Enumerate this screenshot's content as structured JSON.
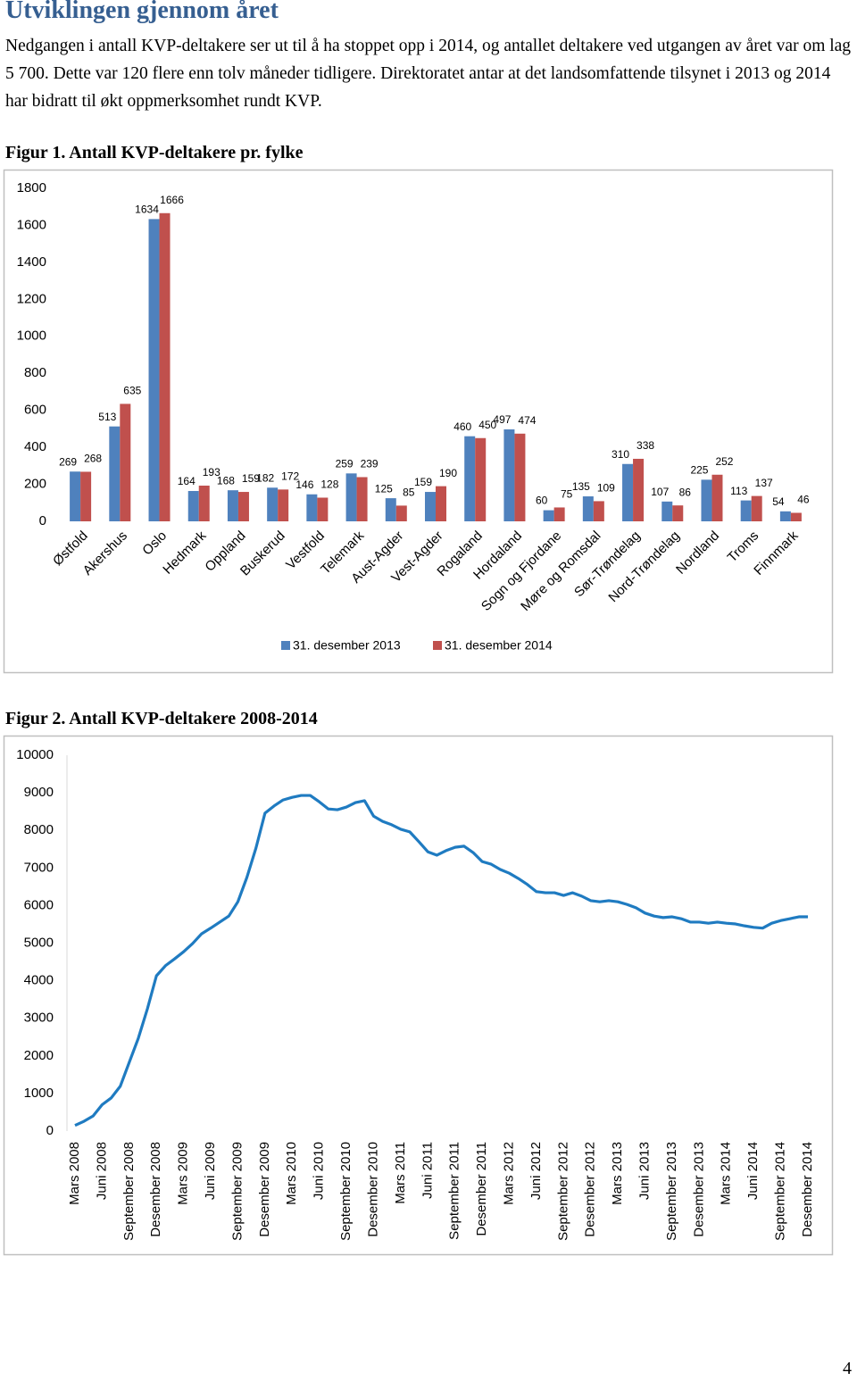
{
  "header": {
    "title": "Utviklingen gjennom året"
  },
  "paragraph": "Nedgangen i antall KVP-deltakere ser ut til å ha stoppet opp i 2014, og antallet deltakere ved utgangen av året var om lag 5 700. Dette var 120 flere enn tolv måneder tidligere. Direktoratet antar at det landsomfattende tilsynet i 2013 og 2014 har bidratt til økt oppmerksomhet rundt KVP.",
  "chart_data": [
    {
      "type": "bar",
      "title": "Figur 1. Antall KVP-deltakere pr. fylke",
      "categories": [
        "Østfold",
        "Akershus",
        "Oslo",
        "Hedmark",
        "Oppland",
        "Buskerud",
        "Vestfold",
        "Telemark",
        "Aust-Agder",
        "Vest-Agder",
        "Rogaland",
        "Hordaland",
        "Sogn og Fjordane",
        "Møre og Romsdal",
        "Sør-Trøndelag",
        "Nord-Trøndelag",
        "Nordland",
        "Troms",
        "Finnmark"
      ],
      "series": [
        {
          "name": "31. desember 2013",
          "color": "#4f81bd",
          "values": [
            269,
            513,
            1634,
            164,
            168,
            182,
            146,
            259,
            125,
            159,
            460,
            497,
            60,
            135,
            310,
            107,
            225,
            113,
            54
          ]
        },
        {
          "name": "31. desember 2014",
          "color": "#c0504d",
          "values": [
            268,
            635,
            1666,
            193,
            159,
            172,
            128,
            239,
            85,
            190,
            450,
            474,
            75,
            109,
            338,
            86,
            252,
            137,
            46
          ]
        }
      ],
      "ylim": [
        0,
        1800
      ],
      "yticks": [
        0,
        200,
        400,
        600,
        800,
        1000,
        1200,
        1400,
        1600,
        1800
      ],
      "grid": false,
      "legend": "bottom"
    },
    {
      "type": "line",
      "title": "Figur 2. Antall KVP-deltakere 2008-2014",
      "color": "#1f7bc1",
      "categories": [
        "Mars 2008",
        null,
        null,
        "Juni 2008",
        null,
        null,
        "September 2008",
        null,
        null,
        "Desember 2008",
        null,
        null,
        "Mars 2009",
        null,
        null,
        "Juni 2009",
        null,
        null,
        "September 2009",
        null,
        null,
        "Desember 2009",
        null,
        null,
        "Mars 2010",
        null,
        null,
        "Juni 2010",
        null,
        null,
        "September 2010",
        null,
        null,
        "Desember 2010",
        null,
        null,
        "Mars 2011",
        null,
        null,
        "Juni 2011",
        null,
        null,
        "September 2011",
        null,
        null,
        "Desember 2011",
        null,
        null,
        "Mars 2012",
        null,
        null,
        "Juni 2012",
        null,
        null,
        "September 2012",
        null,
        null,
        "Desember 2012",
        null,
        null,
        "Mars 2013",
        null,
        null,
        "Juni 2013",
        null,
        null,
        "September 2013",
        null,
        null,
        "Desember 2013",
        null,
        null,
        "Mars 2014",
        null,
        null,
        "Juni 2014",
        null,
        null,
        "September 2014",
        null,
        null,
        "Desember 2014"
      ],
      "values": [
        150,
        260,
        400,
        700,
        880,
        1190,
        1830,
        2470,
        3250,
        4130,
        4400,
        4580,
        4770,
        4990,
        5250,
        5400,
        5560,
        5720,
        6100,
        6750,
        7530,
        8460,
        8650,
        8810,
        8880,
        8930,
        8930,
        8760,
        8570,
        8550,
        8620,
        8740,
        8790,
        8380,
        8240,
        8150,
        8030,
        7960,
        7700,
        7430,
        7340,
        7460,
        7550,
        7580,
        7410,
        7170,
        7100,
        6960,
        6860,
        6720,
        6560,
        6370,
        6340,
        6340,
        6270,
        6340,
        6250,
        6130,
        6100,
        6130,
        6100,
        6030,
        5940,
        5800,
        5720,
        5680,
        5700,
        5650,
        5560,
        5560,
        5530,
        5560,
        5530,
        5510,
        5460,
        5420,
        5400,
        5530,
        5600,
        5650,
        5700,
        5700
      ],
      "ylim": [
        0,
        10000
      ],
      "yticks": [
        0,
        1000,
        2000,
        3000,
        4000,
        5000,
        6000,
        7000,
        8000,
        9000,
        10000
      ],
      "grid": false
    }
  ],
  "page_number": "4"
}
